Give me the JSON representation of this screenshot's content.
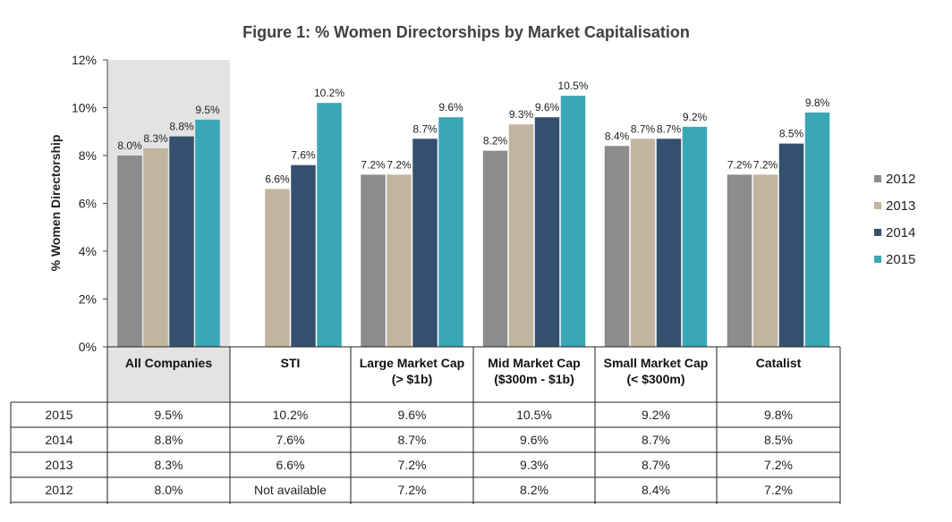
{
  "chart_data": {
    "type": "bar",
    "title": "Figure 1: % Women Directorships by Market Capitalisation",
    "xlabel": "",
    "ylabel": "% Women Directorship",
    "ylim": [
      0,
      12
    ],
    "yticks": [
      "0%",
      "2%",
      "4%",
      "6%",
      "8%",
      "10%",
      "12%"
    ],
    "categories": [
      [
        "All Companies"
      ],
      [
        "STI"
      ],
      [
        "Large Market Cap",
        "(> $1b)"
      ],
      [
        "Mid Market Cap",
        "($300m - $1b)"
      ],
      [
        "Small Market Cap",
        "(< $300m)"
      ],
      [
        "Catalist"
      ]
    ],
    "highlighted_category": "All Companies",
    "legend_position": "right",
    "grid": false,
    "series": [
      {
        "name": "2012",
        "color": "#8c8c8c",
        "values": [
          8.0,
          null,
          7.2,
          8.2,
          8.4,
          7.2
        ],
        "labels": [
          "8.0%",
          "",
          "7.2%",
          "8.2%",
          "8.4%",
          "7.2%"
        ]
      },
      {
        "name": "2013",
        "color": "#c2b49e",
        "values": [
          8.3,
          6.6,
          7.2,
          9.3,
          8.7,
          7.2
        ],
        "labels": [
          "8.3%",
          "6.6%",
          "7.2%",
          "9.3%",
          "8.7%",
          "7.2%"
        ]
      },
      {
        "name": "2014",
        "color": "#34506e",
        "values": [
          8.8,
          7.6,
          8.7,
          9.6,
          8.7,
          8.5
        ],
        "labels": [
          "8.8%",
          "7.6%",
          "8.7%",
          "9.6%",
          "8.7%",
          "8.5%"
        ]
      },
      {
        "name": "2015",
        "color": "#3aa7b5",
        "values": [
          9.5,
          10.2,
          9.6,
          10.5,
          9.2,
          9.8
        ],
        "labels": [
          "9.5%",
          "10.2%",
          "9.6%",
          "10.5%",
          "9.2%",
          "9.8%"
        ]
      }
    ],
    "table": {
      "rows": [
        {
          "year": "2015",
          "cells": [
            "9.5%",
            "10.2%",
            "9.6%",
            "10.5%",
            "9.2%",
            "9.8%"
          ]
        },
        {
          "year": "2014",
          "cells": [
            "8.8%",
            "7.6%",
            "8.7%",
            "9.6%",
            "8.7%",
            "8.5%"
          ]
        },
        {
          "year": "2013",
          "cells": [
            "8.3%",
            "6.6%",
            "7.2%",
            "9.3%",
            "8.7%",
            "7.2%"
          ]
        },
        {
          "year": "2012",
          "cells": [
            "8.0%",
            "Not available",
            "7.2%",
            "8.2%",
            "8.4%",
            "7.2%"
          ]
        }
      ]
    }
  }
}
